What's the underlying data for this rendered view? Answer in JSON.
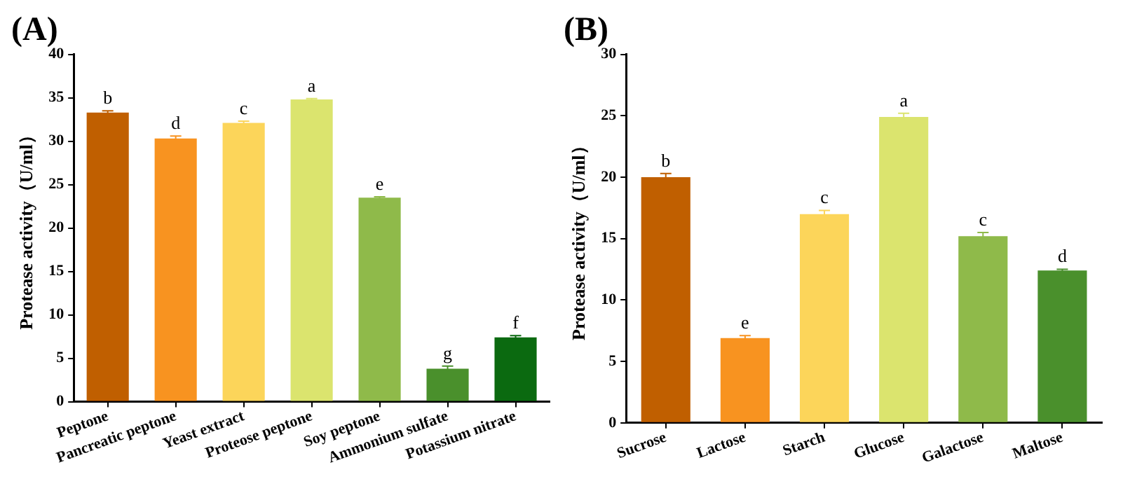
{
  "chart_data": [
    {
      "type": "bar",
      "title": "(A)",
      "ylabel": "Protease activity（U/ml）",
      "categories": [
        "Peptone",
        "Pancreatic peptone",
        "Yeast extract",
        "Proteose peptone",
        "Soy peptone",
        "Ammonium sulfate",
        "Potassium nitrate"
      ],
      "values": [
        33.3,
        30.3,
        32.1,
        34.8,
        23.5,
        3.8,
        7.4
      ],
      "errors": [
        0.2,
        0.3,
        0.2,
        0.1,
        0.1,
        0.3,
        0.2
      ],
      "colors": [
        "#c05f00",
        "#f89320",
        "#fcd55a",
        "#dbe46e",
        "#8fba4a",
        "#4a902c",
        "#0b6a10"
      ],
      "ylim": [
        0,
        40
      ],
      "yticks": [
        0,
        5,
        10,
        15,
        20,
        25,
        30,
        35,
        40
      ],
      "annotations": [
        {
          "text": "b",
          "x": "Peptone",
          "y": 33.5
        },
        {
          "text": "d",
          "x": "Pancreatic peptone",
          "y": 30.6
        },
        {
          "text": "c",
          "x": "Yeast extract",
          "y": 32.3
        },
        {
          "text": "a",
          "x": "Proteose peptone",
          "y": 34.9
        },
        {
          "text": "e",
          "x": "Soy peptone",
          "y": 23.6
        },
        {
          "text": "g",
          "x": "Ammonium sulfate",
          "y": 4.1
        },
        {
          "text": "f",
          "x": "Potassium nitrate",
          "y": 7.6
        }
      ]
    },
    {
      "type": "bar",
      "title": "(B)",
      "ylabel": "Protease activity（U/ml）",
      "categories": [
        "Sucrose",
        "Lactose",
        "Starch",
        "Glucose",
        "Galactose",
        "Maltose"
      ],
      "values": [
        20.0,
        6.9,
        17.0,
        24.9,
        15.2,
        12.4
      ],
      "errors": [
        0.3,
        0.2,
        0.3,
        0.3,
        0.3,
        0.1
      ],
      "colors": [
        "#c05f00",
        "#f89320",
        "#fcd55a",
        "#dbe46e",
        "#8fba4a",
        "#4a902c"
      ],
      "ylim": [
        0,
        30
      ],
      "yticks": [
        0,
        5,
        10,
        15,
        20,
        25,
        30
      ],
      "annotations": [
        {
          "text": "b",
          "x": "Sucrose",
          "y": 20.3
        },
        {
          "text": "e",
          "x": "Lactose",
          "y": 7.1
        },
        {
          "text": "c",
          "x": "Starch",
          "y": 17.3
        },
        {
          "text": "a",
          "x": "Glucose",
          "y": 25.2
        },
        {
          "text": "c",
          "x": "Galactose",
          "y": 15.5
        },
        {
          "text": "d",
          "x": "Maltose",
          "y": 12.5
        }
      ]
    }
  ]
}
